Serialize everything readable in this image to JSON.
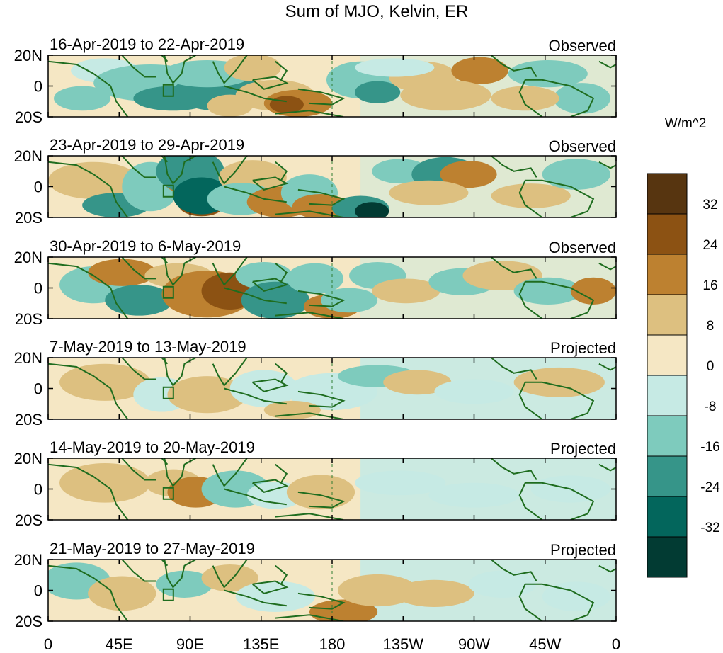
{
  "title": "Sum of MJO, Kelvin, ER",
  "units_label": "W/m^2",
  "panels": [
    {
      "date_range": "16-Apr-2019 to 22-Apr-2019",
      "status": "Observed"
    },
    {
      "date_range": "23-Apr-2019 to 29-Apr-2019",
      "status": "Observed"
    },
    {
      "date_range": "30-Apr-2019 to 6-May-2019",
      "status": "Observed"
    },
    {
      "date_range": "7-May-2019 to 13-May-2019",
      "status": "Projected"
    },
    {
      "date_range": "14-May-2019 to 20-May-2019",
      "status": "Projected"
    },
    {
      "date_range": "21-May-2019 to 27-May-2019",
      "status": "Projected"
    }
  ],
  "lat_ticks": [
    "20N",
    "0",
    "20S"
  ],
  "lon_ticks": [
    "0",
    "45E",
    "90E",
    "135E",
    "180",
    "135W",
    "90W",
    "45W",
    "0"
  ],
  "colorbar": {
    "labels": [
      "32",
      "24",
      "16",
      "8",
      "0",
      "-8",
      "-16",
      "-24",
      "-32"
    ],
    "colors_top_to_bottom": [
      "#573510",
      "#8c5213",
      "#bd8130",
      "#ddc080",
      "#f5e7c4",
      "#c6eae4",
      "#7ecbbd",
      "#369589",
      "#03665c",
      "#023b33"
    ]
  }
}
